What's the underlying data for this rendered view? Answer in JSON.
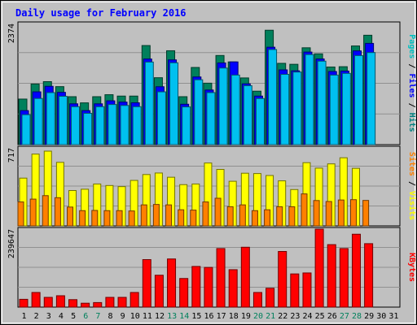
{
  "chart_data": {
    "type": "bar",
    "title": "Daily usage for February 2016",
    "days": [
      "1",
      "2",
      "3",
      "4",
      "5",
      "6",
      "7",
      "8",
      "9",
      "10",
      "11",
      "12",
      "13",
      "14",
      "15",
      "16",
      "17",
      "18",
      "19",
      "20",
      "21",
      "22",
      "23",
      "24",
      "25",
      "26",
      "27",
      "28",
      "29",
      "30",
      "31"
    ],
    "weekend_days": [
      "6",
      "7",
      "13",
      "14",
      "20",
      "21",
      "27",
      "28"
    ],
    "panels": [
      {
        "id": "hits-panel",
        "max_label": "2374",
        "ymax": 2374,
        "axis_labels": [
          {
            "text": "Pages",
            "color": "#00c0c0"
          },
          {
            "text": "Files",
            "color": "#0000ff"
          },
          {
            "text": "Hits",
            "color": "#008080"
          }
        ],
        "series": [
          {
            "name": "Hits",
            "color": "#00805c",
            "values": [
              893,
              1189,
              1235,
              1137,
              940,
              819,
              940,
              979,
              952,
              952,
              1943,
              1312,
              1841,
              940,
              1513,
              1205,
              1748,
              1622,
              1308,
              1048,
              2243,
              1594,
              1575,
              1899,
              1780,
              1522,
              1528,
              1935,
              2145,
              0,
              0
            ]
          },
          {
            "name": "Files",
            "color": "#0000ff",
            "values": [
              667,
              1035,
              1143,
              1025,
              800,
              667,
              800,
              859,
              834,
              820,
              1679,
              1135,
              1662,
              792,
              1327,
              1071,
              1602,
              1622,
              1192,
              952,
              1910,
              1466,
              1447,
              1815,
              1680,
              1434,
              1443,
              1838,
              1985,
              0,
              0
            ]
          },
          {
            "name": "Pages",
            "color": "#00c0f0",
            "values": [
              587,
              905,
              1020,
              948,
              744,
              614,
              744,
              787,
              768,
              744,
              1619,
              1035,
              1605,
              740,
              1272,
              1020,
              1502,
              1364,
              1155,
              904,
              1865,
              1378,
              1423,
              1766,
              1637,
              1364,
              1397,
              1746,
              1805,
              0,
              0
            ]
          }
        ]
      },
      {
        "id": "visits-panel",
        "max_label": "717",
        "ymax": 717,
        "axis_labels": [
          {
            "text": "Sites",
            "color": "#ff8000"
          },
          {
            "text": "Visits",
            "color": "#ffff00"
          }
        ],
        "series": [
          {
            "name": "Visits",
            "color": "#ffff00",
            "values": [
              439,
              660,
              687,
              584,
              325,
              337,
              385,
              371,
              361,
              418,
              472,
              486,
              447,
              379,
              385,
              578,
              519,
              410,
              484,
              481,
              463,
              414,
              334,
              581,
              531,
              570,
              626,
              529,
              0,
              0,
              0
            ]
          },
          {
            "name": "Sites",
            "color": "#ff8000",
            "values": [
              220,
              246,
              278,
              259,
              173,
              140,
              142,
              140,
              140,
              137,
              193,
              197,
              193,
              148,
              145,
              220,
              254,
              176,
              193,
              140,
              148,
              176,
              176,
              294,
              233,
              224,
              238,
              241,
              234,
              0,
              0
            ]
          }
        ]
      },
      {
        "id": "kbytes-panel",
        "max_label": "239647",
        "ymax": 239647,
        "axis_labels": [
          {
            "text": "KBytes",
            "color": "#ff0000"
          }
        ],
        "series": [
          {
            "name": "KBytes",
            "color": "#ff0000",
            "values": [
              24000,
              45000,
              30000,
              35000,
              23000,
              12000,
              14000,
              30000,
              30000,
              45000,
              146000,
              98000,
              148000,
              88000,
              125000,
              122000,
              180000,
              115000,
              184000,
              45000,
              58000,
              171000,
              102000,
              105000,
              239647,
              192000,
              180000,
              224000,
              195000,
              0,
              0
            ]
          }
        ]
      }
    ]
  }
}
